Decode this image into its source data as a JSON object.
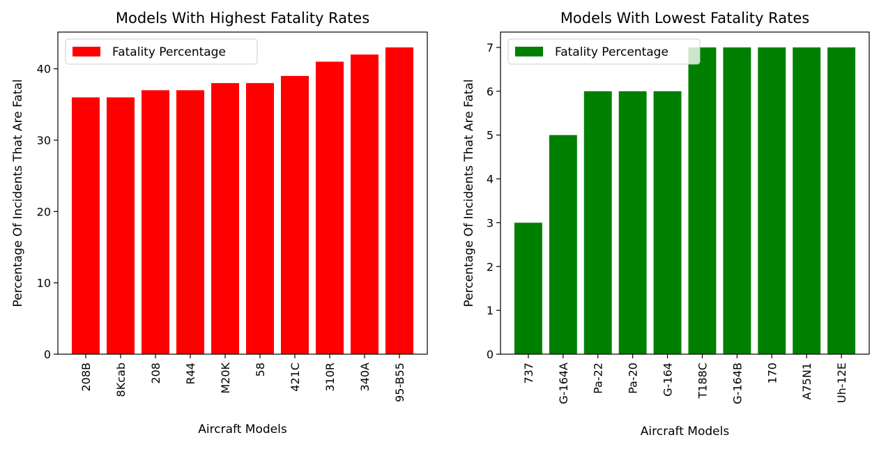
{
  "chart_data": [
    {
      "type": "bar",
      "title": "Models With Highest Fatality Rates",
      "xlabel": "Aircraft Models",
      "ylabel": "Percentage Of Incidents That Are Fatal",
      "categories": [
        "208B",
        "8Kcab",
        "208",
        "R44",
        "M20K",
        "58",
        "421C",
        "310R",
        "340A",
        "95-B55"
      ],
      "series": [
        {
          "name": "Fatality Percentage",
          "values": [
            36,
            36,
            37,
            37,
            38,
            38,
            39,
            41,
            42,
            43
          ],
          "color": "#ff0000"
        }
      ],
      "ylim": [
        0,
        45.15
      ],
      "yticks": [
        0,
        10,
        20,
        30,
        40
      ],
      "legend": "upper left",
      "grid": false
    },
    {
      "type": "bar",
      "title": "Models With Lowest Fatality Rates",
      "xlabel": "Aircraft Models",
      "ylabel": "Percentage Of Incidents That Are Fatal",
      "categories": [
        "737",
        "G-164A",
        "Pa-22",
        "Pa-20",
        "G-164",
        "T188C",
        "G-164B",
        "170",
        "A75N1",
        "Uh-12E"
      ],
      "series": [
        {
          "name": "Fatality Percentage",
          "values": [
            3,
            5,
            6,
            6,
            6,
            7,
            7,
            7,
            7,
            7
          ],
          "color": "#008000"
        }
      ],
      "ylim": [
        0,
        7.35
      ],
      "yticks": [
        0,
        1,
        2,
        3,
        4,
        5,
        6,
        7
      ],
      "legend": "upper left",
      "grid": false
    }
  ]
}
